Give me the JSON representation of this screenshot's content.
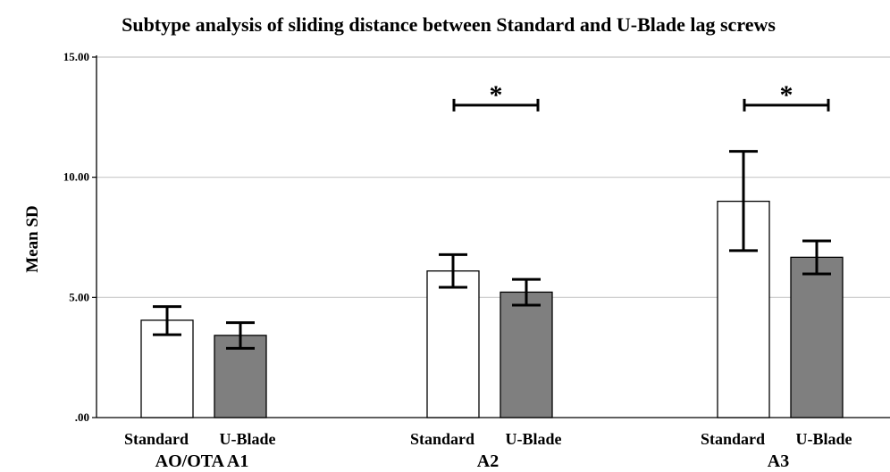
{
  "chart_data": {
    "type": "bar",
    "title": "Subtype analysis of sliding distance between Standard and U-Blade lag screws",
    "ylabel": "Mean SD",
    "xlabel": "",
    "ylim": [
      0,
      15
    ],
    "yticks": [
      ".00",
      "5.00",
      "10.00",
      "15.00"
    ],
    "ytick_values": [
      0,
      5,
      10,
      15
    ],
    "grid": true,
    "categories": [
      "AO/OTA A1",
      "A2",
      "A3"
    ],
    "series": [
      {
        "name": "Standard",
        "color": "#ffffff",
        "values": [
          4.05,
          6.1,
          9.0
        ],
        "err_low": [
          3.45,
          5.42,
          6.95
        ],
        "err_high": [
          4.62,
          6.78,
          11.08
        ]
      },
      {
        "name": "U-Blade",
        "color": "#7f7f7f",
        "values": [
          3.42,
          5.22,
          6.67
        ],
        "err_low": [
          2.88,
          4.68,
          5.98
        ],
        "err_high": [
          3.95,
          5.75,
          7.35
        ]
      }
    ],
    "significance": [
      {
        "category": "A2",
        "label": "*",
        "y": 13.0
      },
      {
        "category": "A3",
        "label": "*",
        "y": 13.0
      }
    ]
  }
}
